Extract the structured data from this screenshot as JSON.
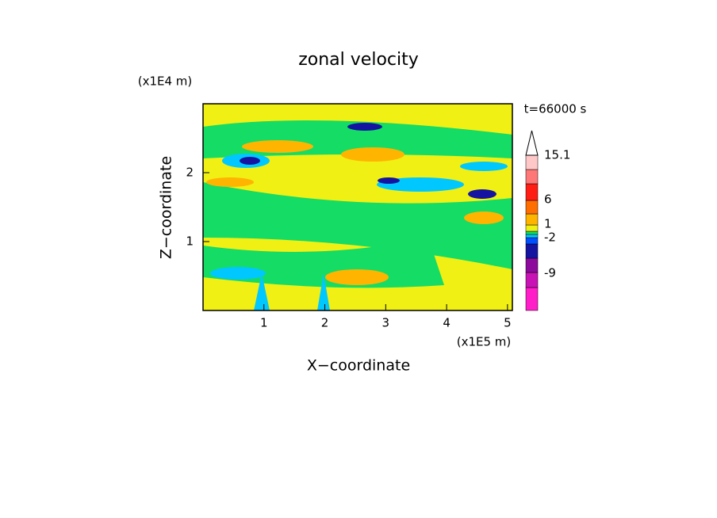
{
  "chart_data": {
    "type": "contour",
    "title": "zonal velocity",
    "x_label": "X−coordinate",
    "y_label": "Z−coordinate",
    "x_unit": "(x1E5 m)",
    "y_unit": "(x1E4 m)",
    "annotation": "t=66000 s",
    "xlim": [
      0,
      5.08
    ],
    "xticks": [
      1,
      2,
      3,
      4,
      5
    ],
    "ylim": [
      0,
      3
    ],
    "yticks": [
      1,
      2
    ],
    "colorbar": {
      "colors": [
        "#ff1ec8",
        "#c814b4",
        "#8c0a9c",
        "#1414a0",
        "#0050ff",
        "#00c8ff",
        "#14dc64",
        "#f0f014",
        "#ffb400",
        "#ff6e00",
        "#ff1e14",
        "#ff7878",
        "#ffc8c8"
      ],
      "ticks": [
        15.1,
        6,
        1,
        -2,
        -9
      ]
    }
  }
}
